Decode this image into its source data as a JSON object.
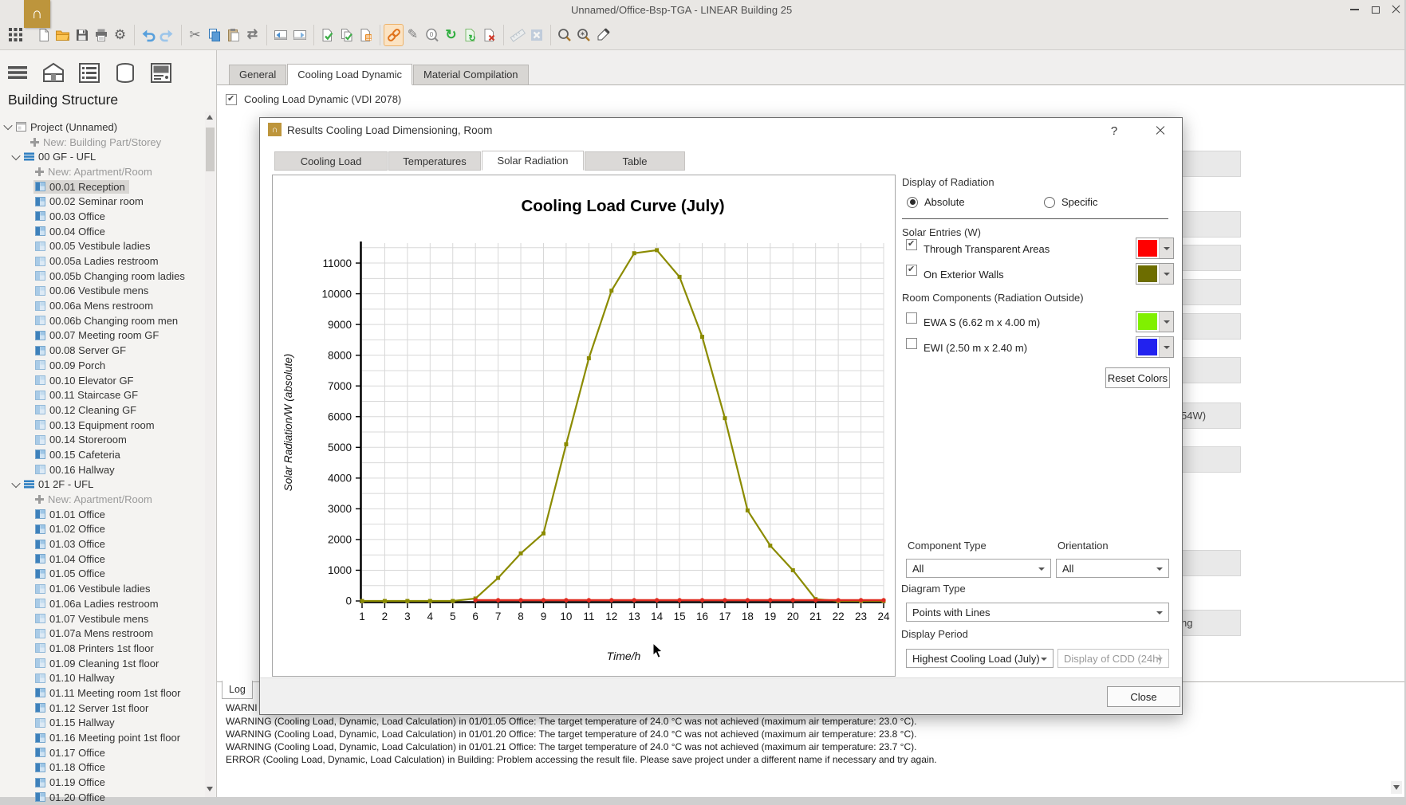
{
  "window": {
    "title": "Unnamed/Office-Bsp-TGA - LINEAR Building 25",
    "logo_color": "#bd953c"
  },
  "toolbar": {
    "groups": [
      [
        "grid-menu"
      ],
      [
        "new-file",
        "open-folder",
        "save",
        "print",
        "settings"
      ],
      [
        "undo",
        "redo"
      ],
      [
        "cut",
        "copy",
        "paste",
        "sync"
      ],
      [
        "screen-back",
        "screen-forward"
      ],
      [
        "file-check",
        "file-copy-check",
        "file-calculator"
      ],
      [
        "link",
        "edit",
        "zoom-object",
        "refresh",
        "file-refresh",
        "file-remove"
      ],
      [
        "measure",
        "excel"
      ],
      [
        "zoom",
        "zoom-plus",
        "eyedropper"
      ]
    ],
    "active": "link",
    "disabled": [
      "measure",
      "excel"
    ]
  },
  "sidebar": {
    "view_icons": [
      "menu",
      "building",
      "list",
      "database",
      "panel"
    ],
    "heading": "Building Structure",
    "tree": [
      {
        "t": "project",
        "label": "Project (Unnamed)",
        "chev": true
      },
      {
        "t": "plus",
        "label": "New: Building Part/Storey",
        "muted": true
      },
      {
        "t": "storey",
        "label": "00 GF - UFL",
        "chev": true
      },
      {
        "t": "plus2",
        "label": "New: Apartment/Room",
        "muted": true
      },
      {
        "t": "roomD",
        "label": "00.01 Reception",
        "sel": true
      },
      {
        "t": "roomD",
        "label": "00.02 Seminar room"
      },
      {
        "t": "roomD",
        "label": "00.03 Office"
      },
      {
        "t": "roomD",
        "label": "00.04 Office"
      },
      {
        "t": "roomL",
        "label": "00.05 Vestibule ladies"
      },
      {
        "t": "roomL",
        "label": "00.05a Ladies restroom"
      },
      {
        "t": "roomL",
        "label": "00.05b Changing room ladies"
      },
      {
        "t": "roomL",
        "label": "00.06 Vestibule mens"
      },
      {
        "t": "roomL",
        "label": "00.06a Mens restroom"
      },
      {
        "t": "roomL",
        "label": "00.06b Changing room men"
      },
      {
        "t": "roomD",
        "label": "00.07 Meeting room GF"
      },
      {
        "t": "roomD",
        "label": "00.08 Server GF"
      },
      {
        "t": "roomL",
        "label": "00.09 Porch"
      },
      {
        "t": "roomL",
        "label": "00.10 Elevator GF"
      },
      {
        "t": "roomL",
        "label": "00.11 Staircase GF"
      },
      {
        "t": "roomL",
        "label": "00.12 Cleaning GF"
      },
      {
        "t": "roomL",
        "label": "00.13 Equipment room"
      },
      {
        "t": "roomL",
        "label": "00.14 Storeroom"
      },
      {
        "t": "roomD",
        "label": "00.15 Cafeteria"
      },
      {
        "t": "roomL",
        "label": "00.16 Hallway"
      },
      {
        "t": "storey",
        "label": "01 2F - UFL",
        "chev": true
      },
      {
        "t": "plus2",
        "label": "New: Apartment/Room",
        "muted": true
      },
      {
        "t": "roomD",
        "label": "01.01 Office"
      },
      {
        "t": "roomD",
        "label": "01.02 Office"
      },
      {
        "t": "roomD",
        "label": "01.03 Office"
      },
      {
        "t": "roomD",
        "label": "01.04 Office"
      },
      {
        "t": "roomD",
        "label": "01.05 Office"
      },
      {
        "t": "roomL",
        "label": "01.06 Vestibule ladies"
      },
      {
        "t": "roomL",
        "label": "01.06a Ladies restroom"
      },
      {
        "t": "roomL",
        "label": "01.07 Vestibule mens"
      },
      {
        "t": "roomL",
        "label": "01.07a Mens restroom"
      },
      {
        "t": "roomL",
        "label": "01.08 Printers 1st floor"
      },
      {
        "t": "roomL",
        "label": "01.09 Cleaning 1st floor"
      },
      {
        "t": "roomL",
        "label": "01.10 Hallway"
      },
      {
        "t": "roomD",
        "label": "01.11 Meeting room 1st floor"
      },
      {
        "t": "roomD",
        "label": "01.12 Server 1st floor"
      },
      {
        "t": "roomL",
        "label": "01.15 Hallway"
      },
      {
        "t": "roomD",
        "label": "01.16 Meeting point 1st floor"
      },
      {
        "t": "roomD",
        "label": "01.17 Office"
      },
      {
        "t": "roomD",
        "label": "01.18 Office"
      },
      {
        "t": "roomD",
        "label": "01.19 Office"
      },
      {
        "t": "roomD",
        "label": "01.20 Office"
      }
    ]
  },
  "main_tabs": [
    {
      "label": "General",
      "active": false
    },
    {
      "label": "Cooling Load Dynamic",
      "active": true
    },
    {
      "label": "Material Compilation",
      "active": false
    }
  ],
  "content": {
    "checkbox_label": "Cooling Load Dynamic (VDI 2078)",
    "checkbox_checked": true,
    "background_boxes": [
      {
        "y": 189
      },
      {
        "y": 265
      },
      {
        "y": 307
      },
      {
        "y": 350
      },
      {
        "y": 393
      },
      {
        "y": 448
      },
      {
        "y": 505,
        "text": "54W)"
      },
      {
        "y": 560
      },
      {
        "y": 690
      },
      {
        "y": 765,
        "text": "ng"
      }
    ]
  },
  "dialog": {
    "title": "Results Cooling Load Dimensioning, Room",
    "help_label": "?",
    "tabs": [
      {
        "label": "Cooling Load",
        "active": false
      },
      {
        "label": "Temperatures",
        "active": false
      },
      {
        "label": "Solar Radiation",
        "active": true
      },
      {
        "label": "Table",
        "active": false
      }
    ],
    "controls": {
      "display_of_radiation": {
        "label": "Display of Radiation",
        "options": [
          {
            "label": "Absolute",
            "selected": true
          },
          {
            "label": "Specific",
            "selected": false
          }
        ]
      },
      "solar_entries": {
        "label": "Solar Entries (W)",
        "items": [
          {
            "label": "Through Transparent Areas",
            "checked": true,
            "color": "#ff0000"
          },
          {
            "label": "On Exterior Walls",
            "checked": true,
            "color": "#6d6d00"
          }
        ]
      },
      "room_components": {
        "label": "Room Components (Radiation Outside)",
        "items": [
          {
            "label": "EWA S (6.62 m x 4.00 m)",
            "checked": false,
            "color": "#80f000"
          },
          {
            "label": "EWI (2.50 m x 2.40 m)",
            "checked": false,
            "color": "#2222ef"
          }
        ]
      },
      "reset_colors_label": "Reset Colors",
      "component_type": {
        "label": "Component Type",
        "value": "All"
      },
      "orientation": {
        "label": "Orientation",
        "value": "All"
      },
      "diagram_type": {
        "label": "Diagram Type",
        "value": "Points with Lines"
      },
      "display_period": {
        "label": "Display Period",
        "value": "Highest Cooling Load (July)",
        "secondary_value": "Display of CDD (24h)",
        "secondary_disabled": true
      },
      "close_label": "Close"
    }
  },
  "chart_data": {
    "type": "line",
    "title": "Cooling Load Curve (July)",
    "xlabel": "Time/h",
    "ylabel": "Solar Radiation/W (absolute)",
    "xlim": [
      1,
      24
    ],
    "ylim": [
      0,
      11650
    ],
    "ytick_step": 1000,
    "grid_minor_step": 500,
    "grid": true,
    "legend_position": "none",
    "series": [
      {
        "name": "On Exterior Walls",
        "color": "#8b8b00",
        "marker": "square",
        "x": [
          1,
          2,
          3,
          4,
          5,
          6,
          7,
          8,
          9,
          10,
          11,
          12,
          13,
          14,
          15,
          16,
          17,
          18,
          19,
          20,
          21,
          22,
          23,
          24
        ],
        "values": [
          0,
          0,
          0,
          0,
          0,
          80,
          750,
          1550,
          2200,
          5100,
          7900,
          10100,
          11320,
          11420,
          10550,
          8600,
          5950,
          2950,
          1800,
          1000,
          60,
          0,
          0,
          0
        ]
      },
      {
        "name": "Through Transparent Areas",
        "color": "#e02b20",
        "marker": "circle",
        "x": [
          6,
          7,
          8,
          9,
          10,
          11,
          12,
          13,
          14,
          15,
          16,
          17,
          18,
          19,
          20,
          21,
          22,
          23,
          24
        ],
        "values": [
          0,
          0,
          0,
          0,
          0,
          0,
          0,
          0,
          0,
          0,
          0,
          0,
          0,
          0,
          0,
          0,
          0,
          0,
          0
        ]
      }
    ]
  },
  "log": {
    "tab_label": "Log",
    "lines": [
      "WARNI",
      "WARNING (Cooling Load, Dynamic, Load Calculation) in 01/01.05 Office: The target temperature of 24.0 °C was not achieved (maximum air temperature: 23.0 °C).",
      "WARNING (Cooling Load, Dynamic, Load Calculation) in 01/01.20 Office: The target temperature of 24.0 °C was not achieved (maximum air temperature: 23.8 °C).",
      "WARNING (Cooling Load, Dynamic, Load Calculation) in 01/01.21 Office: The target temperature of 24.0 °C was not achieved (maximum air temperature: 23.7 °C).",
      "ERROR (Cooling Load, Dynamic, Load Calculation) in Building: Problem accessing the result file. Please save project under a different name if necessary and try again."
    ]
  }
}
